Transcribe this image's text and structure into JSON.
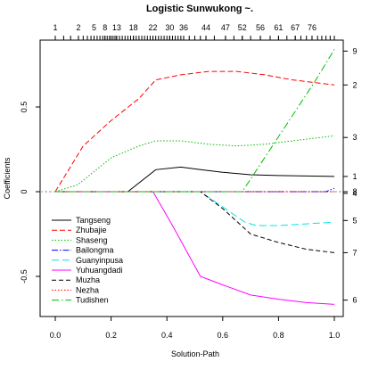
{
  "chart_data": {
    "type": "line",
    "title": "Logistic Sunwukong ~.",
    "xlabel": "Solution-Path",
    "ylabel": "Coefficients",
    "xlim": [
      0,
      1
    ],
    "ylim": [
      -0.7,
      0.9
    ],
    "x_ticks": [
      0.0,
      0.2,
      0.4,
      0.6,
      0.8,
      1.0
    ],
    "x_tick_labels": [
      "0.0",
      "0.2",
      "0.4",
      "0.6",
      "0.8",
      "1.0"
    ],
    "y_ticks": [
      -0.5,
      0,
      0.5
    ],
    "y_tick_labels": [
      "-0.5",
      "0",
      "0.5"
    ],
    "top_axis": {
      "labeled_ticks": [
        {
          "x": 0.0,
          "label": "1"
        },
        {
          "x": 0.083,
          "label": "2"
        },
        {
          "x": 0.139,
          "label": "5"
        },
        {
          "x": 0.178,
          "label": "8"
        },
        {
          "x": 0.22,
          "label": "13"
        },
        {
          "x": 0.28,
          "label": "18"
        },
        {
          "x": 0.35,
          "label": "22"
        },
        {
          "x": 0.41,
          "label": "30"
        },
        {
          "x": 0.46,
          "label": "36"
        },
        {
          "x": 0.54,
          "label": "44"
        },
        {
          "x": 0.61,
          "label": "47"
        },
        {
          "x": 0.67,
          "label": "52"
        },
        {
          "x": 0.735,
          "label": "56"
        },
        {
          "x": 0.8,
          "label": "61"
        },
        {
          "x": 0.86,
          "label": "67"
        },
        {
          "x": 0.92,
          "label": "76"
        }
      ],
      "minor_tick_x": [
        0.03,
        0.055,
        0.083,
        0.1,
        0.115,
        0.128,
        0.139,
        0.15,
        0.16,
        0.17,
        0.178,
        0.186,
        0.194,
        0.2,
        0.207,
        0.214,
        0.22,
        0.23,
        0.24,
        0.25,
        0.26,
        0.27,
        0.28,
        0.29,
        0.3,
        0.31,
        0.32,
        0.33,
        0.34,
        0.35,
        0.36,
        0.37,
        0.38,
        0.39,
        0.4,
        0.41,
        0.42,
        0.43,
        0.44,
        0.45,
        0.46,
        0.48,
        0.5,
        0.52,
        0.54,
        0.57,
        0.61,
        0.64,
        0.67,
        0.7,
        0.735,
        0.77,
        0.8,
        0.83,
        0.86,
        0.88,
        0.9,
        0.92,
        0.94,
        0.955,
        0.97,
        0.985,
        1.0
      ]
    },
    "right_axis_labels": [
      {
        "y": 0.83,
        "label": "9"
      },
      {
        "y": 0.63,
        "label": "2"
      },
      {
        "y": 0.32,
        "label": "3"
      },
      {
        "y": 0.09,
        "label": "1"
      },
      {
        "y": 0.0,
        "label": "8"
      },
      {
        "y": -0.01,
        "label": "4"
      },
      {
        "y": -0.17,
        "label": "5"
      },
      {
        "y": -0.36,
        "label": "7"
      },
      {
        "y": -0.64,
        "label": "6"
      }
    ],
    "legend_position": "bottom-left",
    "series": [
      {
        "name": "Tangseng",
        "color": "#000000",
        "dash": "none",
        "x": [
          0,
          0.26,
          0.36,
          0.45,
          0.52,
          0.6,
          0.7,
          0.8,
          1.0
        ],
        "y": [
          0,
          0,
          0.13,
          0.145,
          0.13,
          0.115,
          0.1,
          0.095,
          0.09
        ]
      },
      {
        "name": "Zhubajie",
        "color": "#ff0000",
        "dash": "6,3",
        "x": [
          0,
          0.1,
          0.2,
          0.3,
          0.36,
          0.45,
          0.55,
          0.65,
          0.75,
          0.85,
          1.0
        ],
        "y": [
          0,
          0.27,
          0.42,
          0.55,
          0.66,
          0.69,
          0.71,
          0.71,
          0.69,
          0.66,
          0.63
        ]
      },
      {
        "name": "Shaseng",
        "color": "#00bb00",
        "dash": "1.5,2",
        "x": [
          0,
          0.08,
          0.2,
          0.3,
          0.36,
          0.45,
          0.55,
          0.65,
          0.75,
          0.85,
          1.0
        ],
        "y": [
          0,
          0.04,
          0.2,
          0.27,
          0.3,
          0.3,
          0.28,
          0.27,
          0.28,
          0.3,
          0.33
        ]
      },
      {
        "name": "Bailongma",
        "color": "#0000ff",
        "dash": "7,2,1.5,2",
        "x": [
          0,
          0.97,
          1.0
        ],
        "y": [
          0,
          0,
          0.02
        ]
      },
      {
        "name": "Guanyinpusa",
        "color": "#00e5e5",
        "dash": "8,4",
        "x": [
          0,
          0.52,
          0.6,
          0.68,
          0.72,
          0.8,
          0.9,
          1.0
        ],
        "y": [
          0,
          0,
          -0.09,
          -0.18,
          -0.2,
          -0.2,
          -0.19,
          -0.18
        ]
      },
      {
        "name": "Yuhuangdadi",
        "color": "#ff00ff",
        "dash": "none",
        "x": [
          0,
          0.35,
          0.42,
          0.52,
          0.6,
          0.7,
          0.8,
          0.9,
          1.0
        ],
        "y": [
          0,
          0,
          -0.2,
          -0.5,
          -0.55,
          -0.61,
          -0.635,
          -0.655,
          -0.665
        ]
      },
      {
        "name": "Muzha",
        "color": "#000000",
        "dash": "5,3",
        "x": [
          0,
          0.52,
          0.6,
          0.7,
          0.8,
          0.9,
          1.0
        ],
        "y": [
          0,
          0,
          -0.1,
          -0.25,
          -0.3,
          -0.34,
          -0.36
        ]
      },
      {
        "name": "Nezha",
        "color": "#ff0000",
        "dash": "1.5,2",
        "x": [
          0,
          1.0
        ],
        "y": [
          0,
          0
        ]
      },
      {
        "name": "Tudishen",
        "color": "#00bb00",
        "dash": "8,3,1.5,3",
        "x": [
          0,
          0.67,
          0.75,
          0.85,
          0.93,
          1.0
        ],
        "y": [
          0,
          0,
          0.2,
          0.45,
          0.65,
          0.84
        ]
      }
    ]
  }
}
